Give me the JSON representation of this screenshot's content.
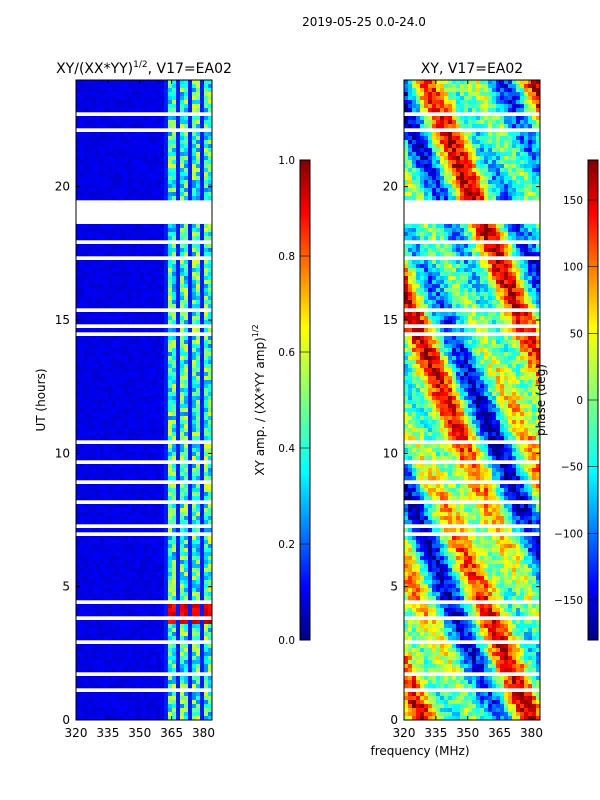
{
  "suptitle": "2019-05-25 0.0-24.0",
  "chart_data": [
    {
      "type": "heatmap",
      "title_prefix": "XY/(XX*YY)",
      "title_exp": "1/2",
      "title_suffix": ", V17=EA02",
      "xlabel": "",
      "ylabel": "UT (hours)",
      "xlim": [
        320,
        384
      ],
      "ylim": [
        0,
        24
      ],
      "xticks": [
        "320",
        "335",
        "350",
        "365",
        "380"
      ],
      "yticks": [
        "0",
        "5",
        "10",
        "15",
        "20"
      ],
      "colorbar": {
        "label_prefix": "XY amp. / (XX*YY amp)",
        "label_exp": "1/2",
        "range": [
          0.0,
          1.0
        ],
        "ticks": [
          "0.0",
          "0.2",
          "0.4",
          "0.6",
          "0.8",
          "1.0"
        ],
        "colormap": "jet"
      },
      "flagged_hours": [
        [
          19.5,
          18.6
        ]
      ]
    },
    {
      "type": "heatmap",
      "title": "XY, V17=EA02",
      "xlabel": "frequency (MHz)",
      "ylabel": "",
      "xlim": [
        320,
        384
      ],
      "ylim": [
        0,
        24
      ],
      "xticks": [
        "320",
        "335",
        "350",
        "365",
        "380"
      ],
      "yticks": [
        "0",
        "5",
        "10",
        "15",
        "20"
      ],
      "colorbar": {
        "label": "phase (deg)",
        "range": [
          -180,
          180
        ],
        "ticks": [
          "−150",
          "−100",
          "−50",
          "0",
          "50",
          "100",
          "150"
        ],
        "colormap": "jet"
      },
      "flagged_hours": [
        [
          19.5,
          18.6
        ]
      ]
    }
  ]
}
